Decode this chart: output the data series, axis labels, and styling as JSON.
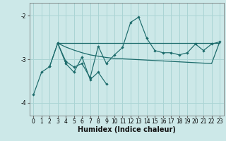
{
  "xlabel": "Humidex (Indice chaleur)",
  "bg_color": "#cce8e8",
  "line_color": "#1c6b6b",
  "grid_color": "#aad4d4",
  "x_values": [
    0,
    1,
    2,
    3,
    4,
    5,
    6,
    7,
    8,
    9,
    10,
    11,
    12,
    13,
    14,
    15,
    16,
    17,
    18,
    19,
    20,
    21,
    22,
    23
  ],
  "line1_x": [
    0,
    1,
    2,
    3,
    4,
    5,
    6,
    7,
    8,
    9
  ],
  "line1_y": [
    -3.82,
    -3.3,
    -3.17,
    -2.63,
    -3.1,
    -3.3,
    -2.95,
    -3.47,
    -3.3,
    -3.57
  ],
  "line2_x": [
    2,
    3,
    4,
    5,
    6,
    7,
    8,
    9,
    10,
    11,
    12,
    13,
    14,
    15,
    16,
    17,
    18,
    19,
    20,
    21,
    22,
    23
  ],
  "line2_y": [
    -3.17,
    -2.63,
    -3.05,
    -3.18,
    -3.1,
    -3.43,
    -2.7,
    -3.1,
    -2.9,
    -2.73,
    -2.15,
    -2.03,
    -2.52,
    -2.8,
    -2.85,
    -2.85,
    -2.9,
    -2.85,
    -2.65,
    -2.8,
    -2.65,
    -2.6
  ],
  "line3_x": [
    3,
    23
  ],
  "line3_y": [
    -2.63,
    -2.63
  ],
  "line4_x": [
    3,
    4,
    5,
    6,
    7,
    8,
    9,
    10,
    11,
    12,
    13,
    14,
    15,
    16,
    17,
    18,
    19,
    20,
    21,
    22,
    23
  ],
  "line4_y": [
    -2.63,
    -2.72,
    -2.79,
    -2.85,
    -2.9,
    -2.93,
    -2.96,
    -2.98,
    -2.99,
    -3.0,
    -3.01,
    -3.02,
    -3.03,
    -3.04,
    -3.05,
    -3.06,
    -3.07,
    -3.08,
    -3.09,
    -3.1,
    -2.6
  ],
  "ylim": [
    -4.3,
    -1.7
  ],
  "yticks": [
    -4,
    -3,
    -2
  ],
  "xlim": [
    -0.5,
    23.5
  ]
}
